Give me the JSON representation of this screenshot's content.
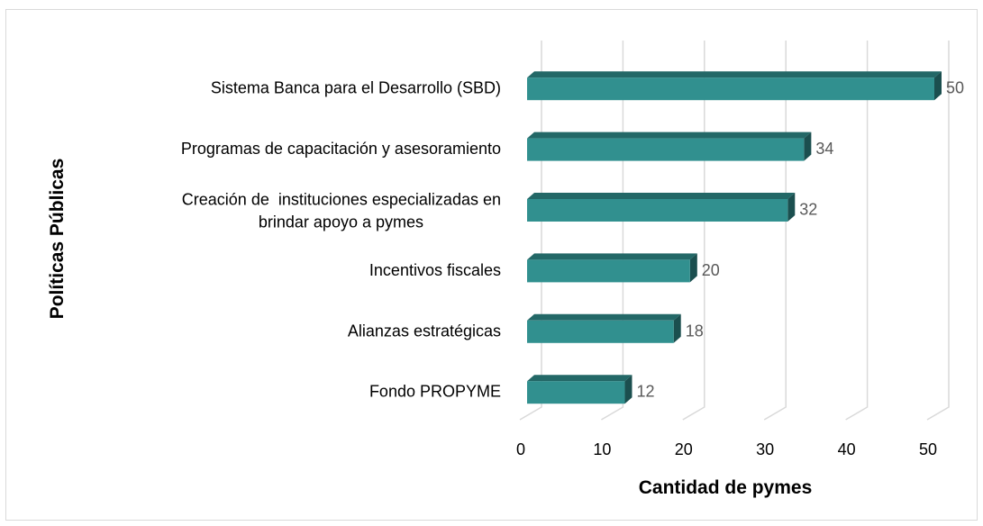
{
  "chart_data": {
    "type": "bar3d_horizontal",
    "x_label": "Cantidad de pymes",
    "y_label": "Políticas Públicas",
    "categories": [
      "Sistema Banca para el Desarrollo (SBD)",
      "Programas de capacitación y asesoramiento",
      "Creación de  instituciones especializadas en\nbrindar apoyo a pymes",
      "Incentivos fiscales",
      "Alianzas estratégicas",
      "Fondo PROPYME"
    ],
    "values": [
      50,
      34,
      32,
      20,
      18,
      12
    ],
    "color": "#31908f",
    "xlim": [
      0,
      50
    ],
    "xticks": [
      0,
      10,
      20,
      30,
      40,
      50
    ],
    "grid": true
  }
}
